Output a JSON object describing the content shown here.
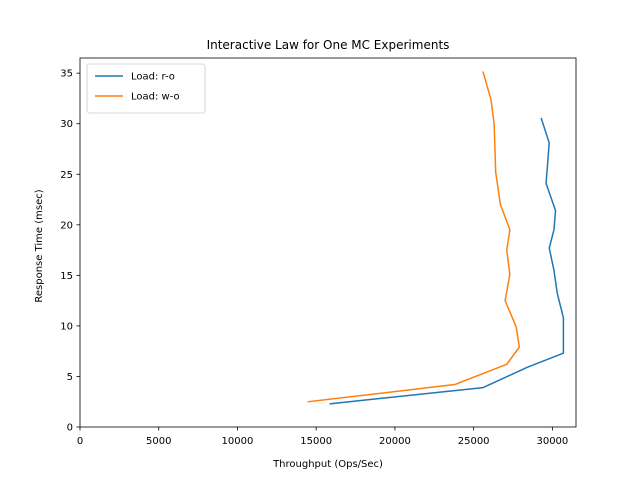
{
  "chart_data": {
    "type": "line",
    "title": "Interactive Law for One MC Experiments",
    "xlabel": "Throughput (Ops/Sec)",
    "ylabel": "Response Time (msec)",
    "xlim": [
      0,
      31500
    ],
    "ylim": [
      0,
      36.5
    ],
    "xticks": [
      0,
      5000,
      10000,
      15000,
      20000,
      25000,
      30000
    ],
    "yticks": [
      0,
      5,
      10,
      15,
      20,
      25,
      30,
      35
    ],
    "grid": false,
    "legend_position": "upper-left",
    "series": [
      {
        "name": "Load: r-o",
        "color": "#1f77b4",
        "x": [
          15900,
          25600,
          28400,
          30700,
          30700,
          30300,
          30100,
          29800,
          30100,
          30200,
          29600,
          29800,
          29300
        ],
        "y": [
          2.3,
          3.9,
          5.9,
          7.3,
          10.8,
          13.3,
          15.5,
          17.7,
          19.5,
          21.4,
          24.1,
          28.1,
          30.5
        ]
      },
      {
        "name": "Load: w-o",
        "color": "#ff7f0e",
        "x": [
          14500,
          23800,
          27100,
          27900,
          27700,
          27000,
          27300,
          27100,
          27300,
          26700,
          26400,
          26300,
          26100,
          25600
        ],
        "y": [
          2.5,
          4.2,
          6.2,
          7.9,
          9.9,
          12.5,
          15.1,
          17.5,
          19.5,
          22.0,
          25.2,
          30.0,
          32.4,
          35.1
        ]
      }
    ]
  }
}
